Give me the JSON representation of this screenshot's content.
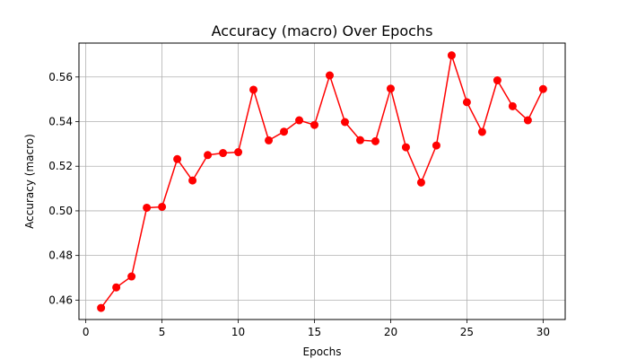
{
  "chart_data": {
    "type": "line",
    "title": "Accuracy (macro) Over Epochs",
    "xlabel": "Epochs",
    "ylabel": "Accuracy (macro)",
    "xlim": [
      -0.45,
      31.45
    ],
    "ylim": [
      0.4513,
      0.5752
    ],
    "x_ticks": [
      0,
      5,
      10,
      15,
      20,
      25,
      30
    ],
    "x_tick_labels": [
      "0",
      "5",
      "10",
      "15",
      "20",
      "25",
      "30"
    ],
    "y_ticks": [
      0.46,
      0.48,
      0.5,
      0.52,
      0.54,
      0.56
    ],
    "y_tick_labels": [
      "0.46",
      "0.48",
      "0.50",
      "0.52",
      "0.54",
      "0.56"
    ],
    "grid": true,
    "line_color": "#ff0000",
    "marker": "circle",
    "series": [
      {
        "x": [
          1,
          2,
          3,
          4,
          5,
          6,
          7,
          8,
          9,
          10,
          11,
          12,
          13,
          14,
          15,
          16,
          17,
          18,
          19,
          20,
          21,
          22,
          23,
          24,
          25,
          26,
          27,
          28,
          29,
          30
        ],
        "values": [
          0.4565,
          0.4657,
          0.4706,
          0.5014,
          0.5018,
          0.5232,
          0.5136,
          0.525,
          0.5259,
          0.5263,
          0.5543,
          0.5316,
          0.5355,
          0.5406,
          0.5385,
          0.5607,
          0.5398,
          0.5317,
          0.5312,
          0.5548,
          0.5285,
          0.5127,
          0.5293,
          0.5697,
          0.5487,
          0.5354,
          0.5585,
          0.5469,
          0.5406,
          0.5546
        ]
      }
    ]
  }
}
